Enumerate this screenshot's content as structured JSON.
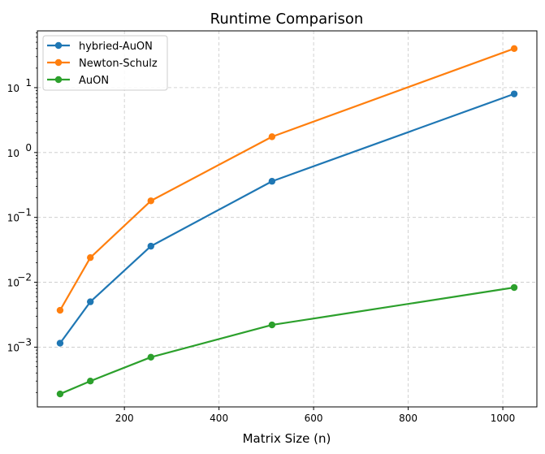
{
  "chart_data": {
    "type": "line",
    "title": "Runtime Comparison",
    "xlabel": "Matrix Size (n)",
    "ylabel": "",
    "xscale": "linear",
    "yscale": "log",
    "xlim": [
      16,
      1072
    ],
    "ylim": [
      0.00012,
      75
    ],
    "xticks": [
      200,
      400,
      600,
      800,
      1000
    ],
    "xtick_labels": [
      "200",
      "400",
      "600",
      "800",
      "1000"
    ],
    "yticks": [
      0.001,
      0.01,
      0.1,
      1,
      10
    ],
    "ytick_labels": [
      {
        "base": "10",
        "exp": "−3"
      },
      {
        "base": "10",
        "exp": "−2"
      },
      {
        "base": "10",
        "exp": "−1"
      },
      {
        "base": "10",
        "exp": "0"
      },
      {
        "base": "10",
        "exp": "1"
      }
    ],
    "grid": true,
    "legend_position": "top-left",
    "x": [
      64,
      128,
      256,
      512,
      1024
    ],
    "series": [
      {
        "name": "hybried-AuON",
        "color": "#1f77b4",
        "values": [
          0.00115,
          0.005,
          0.036,
          0.36,
          8.0
        ]
      },
      {
        "name": "Newton-Schulz",
        "color": "#ff7f0e",
        "values": [
          0.0037,
          0.024,
          0.18,
          1.75,
          40.0
        ]
      },
      {
        "name": "AuON",
        "color": "#2ca02c",
        "values": [
          0.00019,
          0.0003,
          0.0007,
          0.0022,
          0.0083
        ]
      }
    ]
  }
}
